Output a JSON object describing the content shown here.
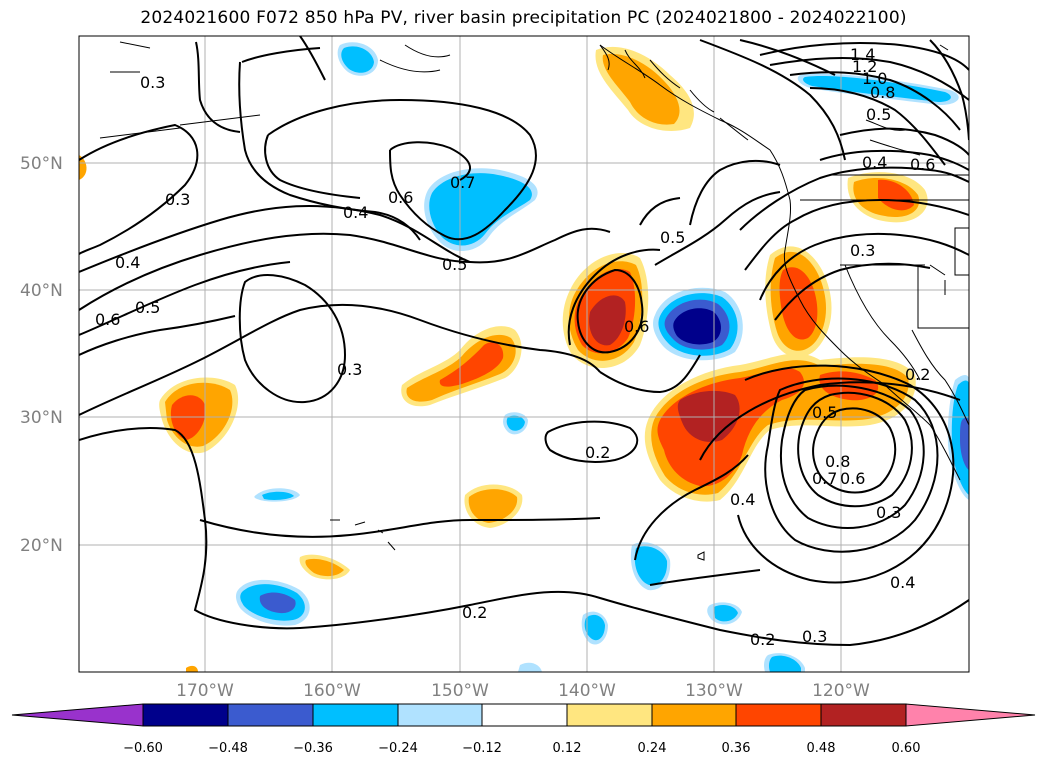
{
  "title": "2024021600 F072 850 hPa PV, river basin precipitation PC (2024021800 - 2024022100)",
  "map": {
    "lon_range": [
      -180,
      -110
    ],
    "lat_range": [
      10,
      60
    ],
    "lat_labels": [
      "50°N",
      "40°N",
      "30°N",
      "20°N"
    ],
    "lon_labels": [
      "170°W",
      "160°W",
      "150°W",
      "140°W",
      "130°W",
      "120°W"
    ],
    "contour_labels": [
      "0.3",
      "0.3",
      "0.4",
      "0.6",
      "0.5",
      "0.4",
      "0.6",
      "0.5",
      "0.7",
      "0.5",
      "0.3",
      "0.6",
      "0.2",
      "0.2",
      "0.2",
      "0.3",
      "0.4",
      "0.5",
      "0.8",
      "0.7",
      "0.6",
      "0.3",
      "0.4",
      "0.3",
      "0.2",
      "0.4",
      "0.6",
      "0.5",
      "0.8",
      "1.0",
      "1.2",
      "1.4"
    ]
  },
  "colorbar": {
    "ticks": [
      "−0.60",
      "−0.48",
      "−0.36",
      "−0.24",
      "−0.12",
      "0.12",
      "0.24",
      "0.36",
      "0.48",
      "0.60"
    ],
    "colors": [
      "#9932cc",
      "#00008b",
      "#3b5bcf",
      "#00bfff",
      "#b0e2ff",
      "#ffffff",
      "#ffe680",
      "#ffa500",
      "#ff4500",
      "#b22222",
      "#ff82ab"
    ]
  }
}
